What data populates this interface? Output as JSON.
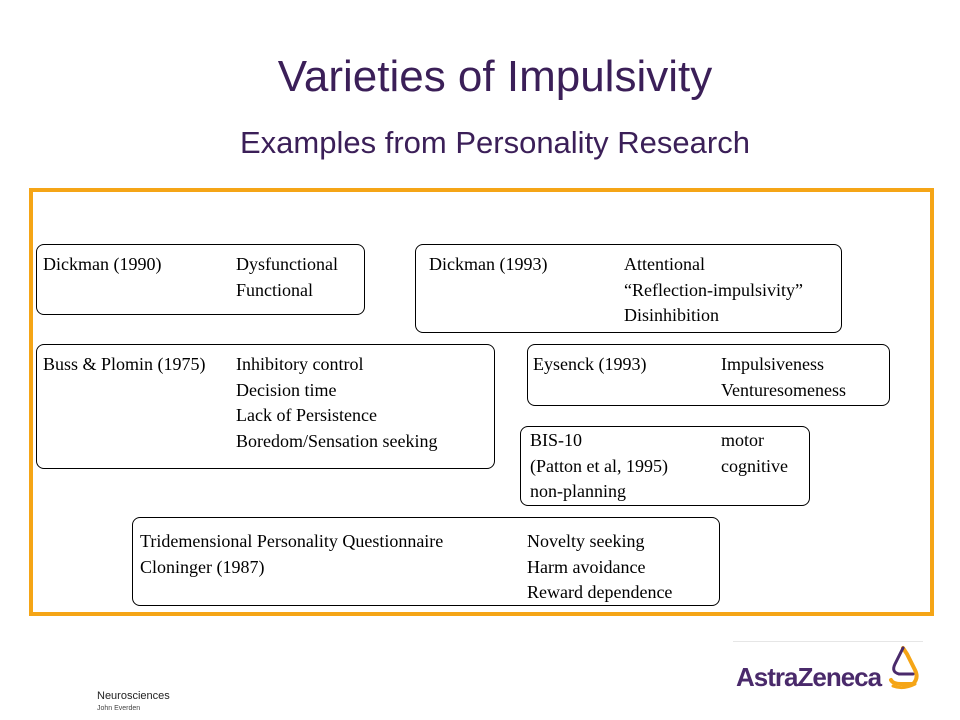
{
  "slide": {
    "title": "Varieties of Impulsivity",
    "subtitle": "Examples from Personality Research"
  },
  "boxes": {
    "dickman1990": {
      "source": [
        "Dickman (1990)"
      ],
      "factors": [
        "Dysfunctional",
        "Functional"
      ]
    },
    "dickman1993": {
      "source": [
        "Dickman (1993)"
      ],
      "factors": [
        "Attentional",
        "“Reflection-impulsivity”",
        "Disinhibition"
      ]
    },
    "buss": {
      "source": [
        "Buss & Plomin (1975)"
      ],
      "factors": [
        "Inhibitory control",
        "Decision time",
        "Lack of Persistence",
        "Boredom/Sensation seeking"
      ]
    },
    "eysenck": {
      "source": [
        "Eysenck (1993)"
      ],
      "factors": [
        "Impulsiveness",
        "Venturesomeness"
      ]
    },
    "bis10": {
      "source": [
        "BIS-10",
        "(Patton et al, 1995)",
        "non-planning"
      ],
      "factors": [
        "motor",
        "cognitive"
      ]
    },
    "tpq": {
      "source": [
        "Tridemensional Personality Questionnaire",
        "Cloninger (1987)"
      ],
      "factors": [
        "Novelty seeking",
        "Harm avoidance",
        "Reward dependence"
      ]
    }
  },
  "footer": {
    "department": "Neurosciences",
    "author": "John Everden"
  },
  "logo": {
    "text": "AstraZeneca",
    "icon": "astrazeneca-swirl-icon"
  },
  "colors": {
    "title": "#3b1f58",
    "frame": "#f5a516",
    "logo_text": "#4a2a6b",
    "logo_mark": "#f5a516"
  }
}
